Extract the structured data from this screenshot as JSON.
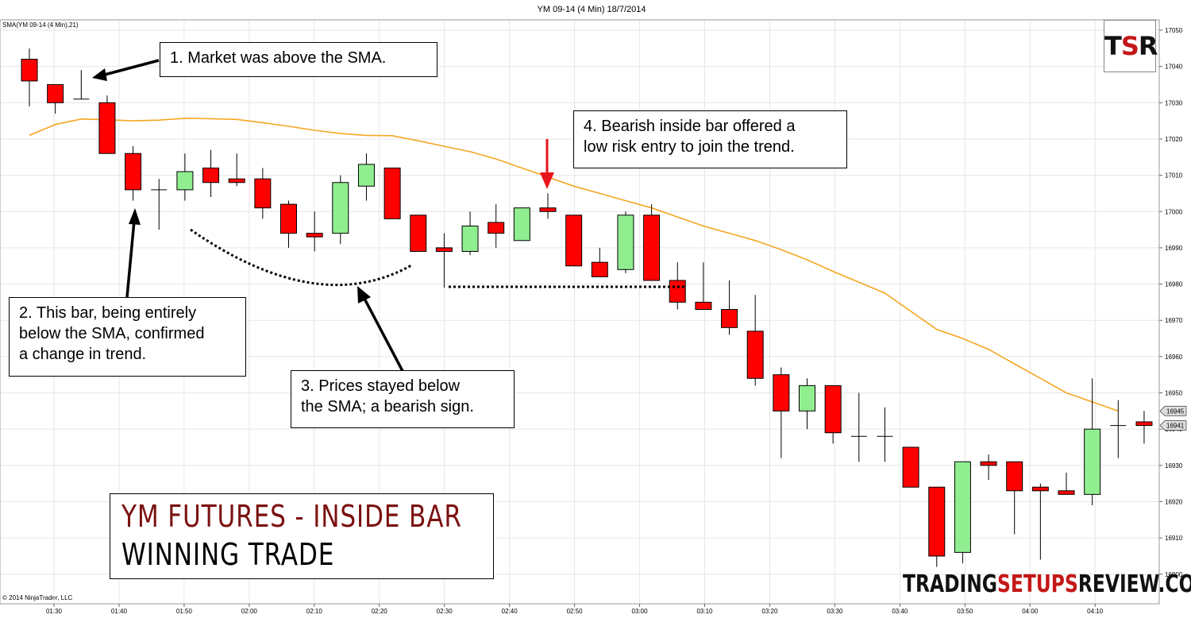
{
  "chart_data": {
    "type": "candlestick",
    "title": "YM 09-14 (4 Min)  18/7/2014",
    "indicator_label": "SMA(YM 09-14 (4 Min),21)",
    "copyright": "© 2014 NinjaTrader, LLC",
    "ylim": [
      16896,
      17053
    ],
    "x_tick_labels": [
      "01:30",
      "01:40",
      "01:50",
      "02:00",
      "02:10",
      "02:20",
      "02:30",
      "02:40",
      "02:50",
      "03:00",
      "03:10",
      "03:20",
      "03:30",
      "03:40",
      "03:50",
      "04:00",
      "04:10"
    ],
    "y_tick_labels": [
      17050,
      17040,
      17030,
      17020,
      17010,
      17000,
      16990,
      16980,
      16970,
      16960,
      16950,
      16940,
      16930,
      16920,
      16910,
      16900
    ],
    "price_markers": [
      {
        "label": "16945",
        "value": 16945
      },
      {
        "label": "16941",
        "value": 16941
      }
    ],
    "colors": {
      "up": "#90ee90",
      "down": "#ff0000",
      "sma": "#f5a623",
      "grid": "#e6e6e6",
      "annotation_arrow_red": "#e8161a"
    },
    "candles": [
      {
        "o": 17042,
        "h": 17045,
        "l": 17029,
        "c": 17036
      },
      {
        "o": 17035,
        "h": 17035,
        "l": 17027,
        "c": 17030
      },
      {
        "o": 17031,
        "h": 17039,
        "l": 17031,
        "c": 17031
      },
      {
        "o": 17030,
        "h": 17032,
        "l": 17016,
        "c": 17016
      },
      {
        "o": 17016,
        "h": 17018,
        "l": 17003,
        "c": 17006
      },
      {
        "o": 17006,
        "h": 17009,
        "l": 16995,
        "c": 17006
      },
      {
        "o": 17006,
        "h": 17016,
        "l": 17003,
        "c": 17011
      },
      {
        "o": 17012,
        "h": 17017,
        "l": 17004,
        "c": 17008
      },
      {
        "o": 17009,
        "h": 17016,
        "l": 17007,
        "c": 17008
      },
      {
        "o": 17009,
        "h": 17012,
        "l": 16998,
        "c": 17001
      },
      {
        "o": 17002,
        "h": 17003,
        "l": 16990,
        "c": 16994
      },
      {
        "o": 16994,
        "h": 17000,
        "l": 16989,
        "c": 16993
      },
      {
        "o": 16994,
        "h": 17010,
        "l": 16991,
        "c": 17008
      },
      {
        "o": 17007,
        "h": 17016,
        "l": 17003,
        "c": 17013
      },
      {
        "o": 17012,
        "h": 17012,
        "l": 16998,
        "c": 16998
      },
      {
        "o": 16999,
        "h": 16999,
        "l": 16989,
        "c": 16989
      },
      {
        "o": 16990,
        "h": 16994,
        "l": 16979,
        "c": 16989
      },
      {
        "o": 16989,
        "h": 17000,
        "l": 16988,
        "c": 16996
      },
      {
        "o": 16997,
        "h": 17002,
        "l": 16990,
        "c": 16994
      },
      {
        "o": 16992,
        "h": 17001,
        "l": 16992,
        "c": 17001
      },
      {
        "o": 17001,
        "h": 17005,
        "l": 16998,
        "c": 17000
      },
      {
        "o": 16999,
        "h": 16999,
        "l": 16985,
        "c": 16985
      },
      {
        "o": 16986,
        "h": 16990,
        "l": 16982,
        "c": 16982
      },
      {
        "o": 16984,
        "h": 17000,
        "l": 16983,
        "c": 16999
      },
      {
        "o": 16999,
        "h": 17002,
        "l": 16981,
        "c": 16981
      },
      {
        "o": 16981,
        "h": 16986,
        "l": 16973,
        "c": 16975
      },
      {
        "o": 16975,
        "h": 16986,
        "l": 16973,
        "c": 16973
      },
      {
        "o": 16973,
        "h": 16981,
        "l": 16966,
        "c": 16968
      },
      {
        "o": 16967,
        "h": 16977,
        "l": 16952,
        "c": 16954
      },
      {
        "o": 16955,
        "h": 16957,
        "l": 16932,
        "c": 16945
      },
      {
        "o": 16945,
        "h": 16954,
        "l": 16940,
        "c": 16952
      },
      {
        "o": 16952,
        "h": 16952,
        "l": 16936,
        "c": 16939
      },
      {
        "o": 16938,
        "h": 16950,
        "l": 16931,
        "c": 16938
      },
      {
        "o": 16938,
        "h": 16946,
        "l": 16931,
        "c": 16938
      },
      {
        "o": 16935,
        "h": 16935,
        "l": 16924,
        "c": 16924
      },
      {
        "o": 16924,
        "h": 16924,
        "l": 16902,
        "c": 16905
      },
      {
        "o": 16906,
        "h": 16931,
        "l": 16903,
        "c": 16931
      },
      {
        "o": 16931,
        "h": 16933,
        "l": 16926,
        "c": 16930
      },
      {
        "o": 16931,
        "h": 16931,
        "l": 16911,
        "c": 16923
      },
      {
        "o": 16924,
        "h": 16925,
        "l": 16904,
        "c": 16923
      },
      {
        "o": 16923,
        "h": 16928,
        "l": 16922,
        "c": 16922
      },
      {
        "o": 16922,
        "h": 16954,
        "l": 16919,
        "c": 16940
      },
      {
        "o": 16941,
        "h": 16948,
        "l": 16932,
        "c": 16941
      },
      {
        "o": 16942,
        "h": 16945,
        "l": 16936,
        "c": 16941
      }
    ],
    "sma": [
      17021,
      17024,
      17025.5,
      17025.3,
      17025,
      17025.2,
      17025.7,
      17025.6,
      17025.4,
      17024.5,
      17023.5,
      17022.4,
      17021.5,
      17021,
      17020.9,
      17019.5,
      17018,
      17016.5,
      17014.5,
      17012,
      17009.5,
      17007,
      17005,
      17003,
      17001,
      16998.5,
      16996,
      16994,
      16992,
      16989.5,
      16986.7,
      16983.5,
      16980.5,
      16977.5,
      16972.5,
      16967.5,
      16965,
      16962,
      16958,
      16954,
      16950,
      16947.5,
      16945
    ]
  },
  "annotations": {
    "note1": "1. Market was above the SMA.",
    "note2_l1": "2. This bar, being entirely",
    "note2_l2": "below the SMA, confirmed",
    "note2_l3": "a change in trend.",
    "note3_l1": "3. Prices stayed below",
    "note3_l2": "the SMA; a bearish sign.",
    "note4_l1": "4. Bearish inside bar offered a",
    "note4_l2": "low risk entry to join the trend."
  },
  "title_box": {
    "line1": "YM FUTURES - INSIDE BAR",
    "line2": "WINNING TRADE"
  },
  "logo": {
    "t": "T",
    "s": "S",
    "r": "R"
  },
  "watermark": {
    "part1": "TRADING",
    "part2": "SETUPS",
    "part3": "REVIEW.COM"
  }
}
